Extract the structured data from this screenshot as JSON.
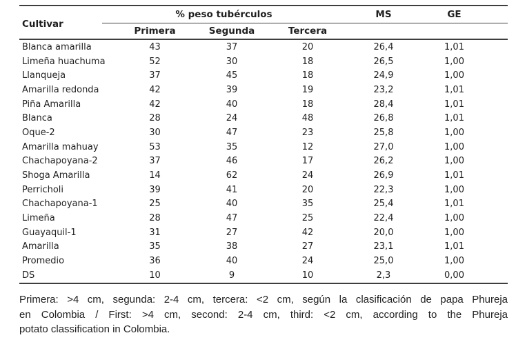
{
  "table": {
    "headers": {
      "cultivar": "Cultivar",
      "group": "% peso tubérculos",
      "primera": "Primera",
      "segunda": "Segunda",
      "tercera": "Tercera",
      "ms": "MS",
      "ge": "GE"
    },
    "rows": [
      {
        "name": "Blanca amarilla",
        "primera": "43",
        "segunda": "37",
        "tercera": "20",
        "ms": "26,4",
        "ge": "1,01"
      },
      {
        "name": "Limeña huachuma",
        "primera": "52",
        "segunda": "30",
        "tercera": "18",
        "ms": "26,5",
        "ge": "1,00"
      },
      {
        "name": "Llanqueja",
        "primera": "37",
        "segunda": "45",
        "tercera": "18",
        "ms": "24,9",
        "ge": "1,00"
      },
      {
        "name": "Amarilla redonda",
        "primera": "42",
        "segunda": "39",
        "tercera": "19",
        "ms": "23,2",
        "ge": "1,01"
      },
      {
        "name": "Piña Amarilla",
        "primera": "42",
        "segunda": "40",
        "tercera": "18",
        "ms": "28,4",
        "ge": "1,01"
      },
      {
        "name": "Blanca",
        "primera": "28",
        "segunda": "24",
        "tercera": "48",
        "ms": "26,8",
        "ge": "1,01"
      },
      {
        "name": "Oque-2",
        "primera": "30",
        "segunda": "47",
        "tercera": "23",
        "ms": "25,8",
        "ge": "1,00"
      },
      {
        "name": "Amarilla mahuay",
        "primera": "53",
        "segunda": "35",
        "tercera": "12",
        "ms": "27,0",
        "ge": "1,00"
      },
      {
        "name": "Chachapoyana-2",
        "primera": "37",
        "segunda": "46",
        "tercera": "17",
        "ms": "26,2",
        "ge": "1,00"
      },
      {
        "name": "Shoga Amarilla",
        "primera": "14",
        "segunda": "62",
        "tercera": "24",
        "ms": "26,9",
        "ge": "1,01"
      },
      {
        "name": "Perricholi",
        "primera": "39",
        "segunda": "41",
        "tercera": "20",
        "ms": "22,3",
        "ge": "1,00"
      },
      {
        "name": "Chachapoyana-1",
        "primera": "25",
        "segunda": "40",
        "tercera": "35",
        "ms": "25,4",
        "ge": "1,01"
      },
      {
        "name": "Limeña",
        "primera": "28",
        "segunda": "47",
        "tercera": "25",
        "ms": "22,4",
        "ge": "1,00"
      },
      {
        "name": "Guayaquil-1",
        "primera": "31",
        "segunda": "27",
        "tercera": "42",
        "ms": "20,0",
        "ge": "1,00"
      },
      {
        "name": "Amarilla",
        "primera": "35",
        "segunda": "38",
        "tercera": "27",
        "ms": "23,1",
        "ge": "1,01"
      },
      {
        "name": "Promedio",
        "primera": "36",
        "segunda": "40",
        "tercera": "24",
        "ms": "25,0",
        "ge": "1,00"
      },
      {
        "name": "DS",
        "primera": "10",
        "segunda": "9",
        "tercera": "10",
        "ms": "2,3",
        "ge": "0,00"
      }
    ]
  },
  "footnote": {
    "full_text": "Primera: >4 cm, segunda: 2-4 cm, tercera: <2 cm, según la clasificación de papa Phureja en Colombia / First: >4 cm, second: 2-4 cm, third: <2 cm, according to the Phureja potato classification in Colombia.",
    "lines": [
      "Primera: >4 cm, segunda: 2-4 cm, tercera: <2 cm, según la clasificación de papa Phureja",
      "en Colombia / First: >4 cm, second: 2-4 cm, third: <2 cm, according to the Phureja",
      "potato classification in Colombia."
    ]
  },
  "colors": {
    "text": "#1f1f1f",
    "rule": "#3e3e3e",
    "background": "#ffffff"
  }
}
